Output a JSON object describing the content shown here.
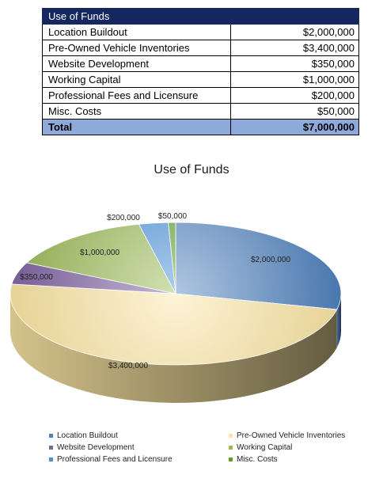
{
  "table": {
    "header": "Use of Funds",
    "rows": [
      {
        "label": "Location Buildout",
        "amount": "$2,000,000"
      },
      {
        "label": "Pre-Owned Vehicle Inventories",
        "amount": "$3,400,000"
      },
      {
        "label": "Website Development",
        "amount": "$350,000"
      },
      {
        "label": "Working Capital",
        "amount": "$1,000,000"
      },
      {
        "label": "Professional Fees and Licensure",
        "amount": "$200,000"
      },
      {
        "label": "Misc. Costs",
        "amount": "$50,000"
      }
    ],
    "total": {
      "label": "Total",
      "amount": "$7,000,000"
    }
  },
  "chart_data": {
    "type": "pie",
    "title": "Use of Funds",
    "style": "3d",
    "legend": "bottom",
    "categories": [
      "Location Buildout",
      "Pre-Owned Vehicle Inventories",
      "Website Development",
      "Working Capital",
      "Professional Fees and Licensure",
      "Misc. Costs"
    ],
    "values": [
      2000000,
      3400000,
      350000,
      1000000,
      200000,
      50000
    ],
    "data_labels": [
      "$2,000,000",
      "$3,400,000",
      "$350,000",
      "$1,000,000",
      "$200,000",
      "$50,000"
    ],
    "colors": [
      "#4f81bd",
      "#fbe5a3",
      "#8064a2",
      "#9bbb59",
      "#4a90d9",
      "#5aa02c"
    ]
  }
}
